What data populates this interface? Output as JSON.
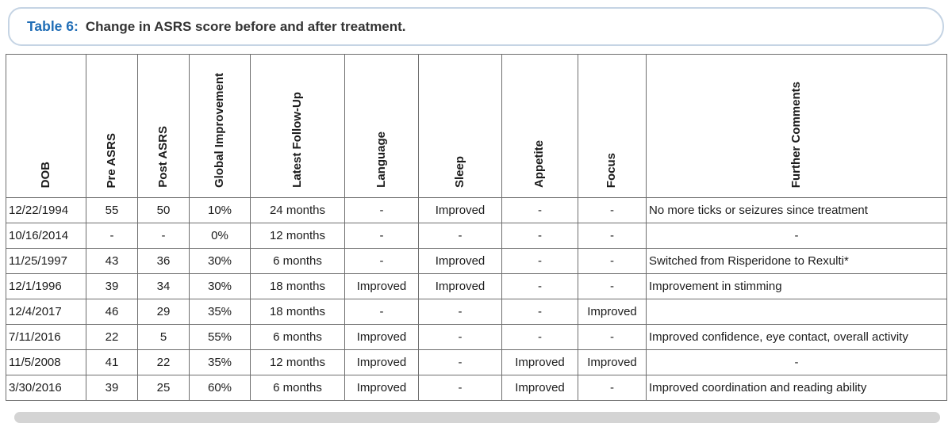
{
  "page": {
    "title_label": "Table 6:",
    "title_text": "Change in ASRS score before and after treatment."
  },
  "colors": {
    "title_accent_blue": "#1f6db6",
    "title_pill_border": "#c5d4e4",
    "table_border_gray": "#6e6e6e",
    "body_text": "#1c1c1c",
    "bottom_bar_gray": "#d4d4d4"
  },
  "table": {
    "columns": [
      {
        "key": "dob",
        "label": "DOB",
        "align": "left"
      },
      {
        "key": "pre_asrs",
        "label": "Pre ASRS",
        "align": "center"
      },
      {
        "key": "post_asrs",
        "label": "Post ASRS",
        "align": "center"
      },
      {
        "key": "global_improvement",
        "label": "Global Improvement",
        "align": "center"
      },
      {
        "key": "latest_follow_up",
        "label": "Latest Follow-Up",
        "align": "center"
      },
      {
        "key": "language",
        "label": "Language",
        "align": "center"
      },
      {
        "key": "sleep",
        "label": "Sleep",
        "align": "center"
      },
      {
        "key": "appetite",
        "label": "Appetite",
        "align": "center"
      },
      {
        "key": "focus",
        "label": "Focus",
        "align": "center"
      },
      {
        "key": "further_comments",
        "label": "Further Comments",
        "align": "left"
      }
    ],
    "rows": [
      {
        "dob": "12/22/1994",
        "pre_asrs": "55",
        "post_asrs": "50",
        "global_improvement": "10%",
        "latest_follow_up": "24 months",
        "language": "-",
        "sleep": "Improved",
        "appetite": "-",
        "focus": "-",
        "further_comments": "No more ticks or seizures since treatment"
      },
      {
        "dob": "10/16/2014",
        "pre_asrs": "-",
        "post_asrs": "-",
        "global_improvement": "0%",
        "latest_follow_up": "12 months",
        "language": "-",
        "sleep": "-",
        "appetite": "-",
        "focus": "-",
        "further_comments": "-"
      },
      {
        "dob": "11/25/1997",
        "pre_asrs": "43",
        "post_asrs": "36",
        "global_improvement": "30%",
        "latest_follow_up": "6 months",
        "language": "-",
        "sleep": "Improved",
        "appetite": "-",
        "focus": "-",
        "further_comments": "Switched from Risperidone to Rexulti*"
      },
      {
        "dob": "12/1/1996",
        "pre_asrs": "39",
        "post_asrs": "34",
        "global_improvement": "30%",
        "latest_follow_up": "18 months",
        "language": "Improved",
        "sleep": "Improved",
        "appetite": "-",
        "focus": "-",
        "further_comments": "Improvement in stimming"
      },
      {
        "dob": "12/4/2017",
        "pre_asrs": "46",
        "post_asrs": "29",
        "global_improvement": "35%",
        "latest_follow_up": "18 months",
        "language": "-",
        "sleep": "-",
        "appetite": "-",
        "focus": "Improved",
        "further_comments": ""
      },
      {
        "dob": "7/11/2016",
        "pre_asrs": "22",
        "post_asrs": "5",
        "global_improvement": "55%",
        "latest_follow_up": "6 months",
        "language": "Improved",
        "sleep": "-",
        "appetite": "-",
        "focus": "-",
        "further_comments": "Improved confidence, eye contact, overall activity"
      },
      {
        "dob": "11/5/2008",
        "pre_asrs": "41",
        "post_asrs": "22",
        "global_improvement": "35%",
        "latest_follow_up": "12 months",
        "language": "Improved",
        "sleep": "-",
        "appetite": "Improved",
        "focus": "Improved",
        "further_comments": "-"
      },
      {
        "dob": "3/30/2016",
        "pre_asrs": "39",
        "post_asrs": "25",
        "global_improvement": "60%",
        "latest_follow_up": "6 months",
        "language": "Improved",
        "sleep": "-",
        "appetite": "Improved",
        "focus": "-",
        "further_comments": "Improved coordination and reading ability"
      }
    ]
  }
}
